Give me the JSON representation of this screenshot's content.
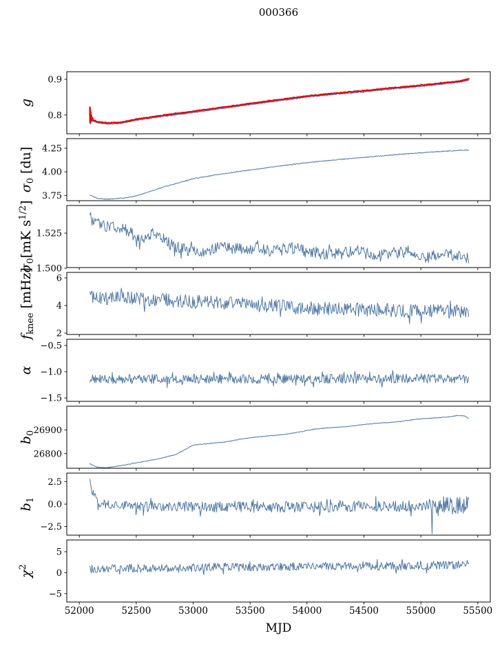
{
  "figure": {
    "background": "#ffffff",
    "axes_color": "#000000",
    "blue_line_color": "#4c78a8",
    "red_line_color": "#e8000b"
  },
  "chart_data": {
    "type": "line",
    "title": "000366",
    "xlabel": "MJD",
    "grid": false,
    "legend": "none",
    "xlim": [
      51890,
      55610
    ],
    "xticks": {
      "values": [
        52000,
        52500,
        53000,
        53500,
        54000,
        54500,
        55000,
        55500
      ],
      "labels": [
        "52000",
        "52500",
        "53000",
        "53500",
        "54000",
        "54500",
        "55000",
        "55500"
      ]
    },
    "panels": [
      {
        "name": "g",
        "ylabel_segments": [
          {
            "t": "g",
            "i": true
          }
        ],
        "ylim": [
          0.7472,
          0.9213
        ],
        "yticks": {
          "values": [
            0.8,
            0.9
          ],
          "labels": [
            "0.8",
            "0.9"
          ]
        },
        "series": [
          {
            "name": "g-blue",
            "color": "#4c78a8",
            "lw": 1.0,
            "n": 750,
            "seed": 11,
            "amp": 0.0013,
            "trend": [
              [
                52100,
                0.785
              ],
              [
                52160,
                0.778
              ],
              [
                52250,
                0.7745
              ],
              [
                52360,
                0.776
              ],
              [
                52500,
                0.785
              ],
              [
                52750,
                0.7965
              ],
              [
                53000,
                0.807
              ],
              [
                53250,
                0.818
              ],
              [
                53500,
                0.829
              ],
              [
                53750,
                0.8395
              ],
              [
                54000,
                0.85
              ],
              [
                54250,
                0.858
              ],
              [
                54500,
                0.865
              ],
              [
                54750,
                0.873
              ],
              [
                55000,
                0.88
              ],
              [
                55200,
                0.887
              ],
              [
                55350,
                0.8925
              ],
              [
                55420,
                0.898
              ]
            ]
          },
          {
            "name": "g-red",
            "color": "#e8000b",
            "lw": 2.2,
            "n": 750,
            "seed": 12,
            "amp": 0.0011,
            "pre": [
              [
                52093,
                0.797
              ],
              [
                52093.5,
                0.822
              ],
              [
                52094,
                0.78
              ],
              [
                52095,
                0.818
              ],
              [
                52096,
                0.777
              ],
              [
                52097,
                0.813
              ],
              [
                52098,
                0.779
              ],
              [
                52100,
                0.807
              ],
              [
                52102,
                0.783
              ],
              [
                52105,
                0.8
              ],
              [
                52109,
                0.787
              ],
              [
                52114,
                0.7925
              ],
              [
                52119,
                0.789
              ]
            ],
            "trend": [
              [
                52100,
                0.788
              ],
              [
                52160,
                0.781
              ],
              [
                52250,
                0.7775
              ],
              [
                52360,
                0.779
              ],
              [
                52500,
                0.788
              ],
              [
                52750,
                0.7995
              ],
              [
                53000,
                0.81
              ],
              [
                53250,
                0.821
              ],
              [
                53500,
                0.832
              ],
              [
                53750,
                0.8425
              ],
              [
                54000,
                0.853
              ],
              [
                54250,
                0.861
              ],
              [
                54500,
                0.868
              ],
              [
                54750,
                0.876
              ],
              [
                55000,
                0.883
              ],
              [
                55200,
                0.89
              ],
              [
                55350,
                0.8955
              ],
              [
                55420,
                0.901
              ]
            ]
          }
        ]
      },
      {
        "name": "sigma0-du",
        "ylabel_segments": [
          {
            "t": "σ",
            "i": true
          },
          {
            "t": "0",
            "pos": "sub"
          },
          {
            "t": " [du]"
          }
        ],
        "ylim": [
          3.694,
          4.352
        ],
        "yticks": {
          "values": [
            3.75,
            4.0,
            4.25
          ],
          "labels": [
            "3.75",
            "4.00",
            "4.25"
          ]
        },
        "series": [
          {
            "name": "sigma0-du-line",
            "color": "#4c78a8",
            "lw": 1.0,
            "n": 700,
            "seed": 21,
            "amp": 0.004,
            "trend": [
              [
                52093,
                3.755
              ],
              [
                52160,
                3.718
              ],
              [
                52260,
                3.711
              ],
              [
                52400,
                3.722
              ],
              [
                52500,
                3.744
              ],
              [
                52750,
                3.843
              ],
              [
                53000,
                3.927
              ],
              [
                53250,
                3.977
              ],
              [
                53500,
                4.019
              ],
              [
                53750,
                4.06
              ],
              [
                54000,
                4.097
              ],
              [
                54250,
                4.127
              ],
              [
                54500,
                4.153
              ],
              [
                54750,
                4.179
              ],
              [
                55000,
                4.202
              ],
              [
                55250,
                4.221
              ],
              [
                55420,
                4.232
              ]
            ]
          }
        ]
      },
      {
        "name": "sigma0-mK",
        "ylabel_segments": [
          {
            "t": "σ",
            "i": true
          },
          {
            "t": "0",
            "pos": "sub"
          },
          {
            "t": "[mK s"
          },
          {
            "t": "1/2",
            "pos": "sup"
          },
          {
            "t": "]"
          }
        ],
        "ylim": [
          1.5005,
          1.5446
        ],
        "yticks": {
          "values": [
            1.5,
            1.525
          ],
          "labels": [
            "1.500",
            "1.525"
          ]
        },
        "series": [
          {
            "name": "sigma0-mK-line",
            "color": "#4c78a8",
            "lw": 1.0,
            "n": 520,
            "seed": 31,
            "amp": 0.0042,
            "trend": [
              [
                52093,
                1.5365
              ],
              [
                52130,
                1.532
              ],
              [
                52250,
                1.53
              ],
              [
                52400,
                1.528
              ],
              [
                52550,
                1.52
              ],
              [
                52650,
                1.526
              ],
              [
                52800,
                1.517
              ],
              [
                52950,
                1.513
              ],
              [
                53100,
                1.5115
              ],
              [
                53250,
                1.516
              ],
              [
                53400,
                1.5135
              ],
              [
                53550,
                1.5145
              ],
              [
                53700,
                1.512
              ],
              [
                53850,
                1.5145
              ],
              [
                54000,
                1.5125
              ],
              [
                54150,
                1.51
              ],
              [
                54300,
                1.5105
              ],
              [
                54450,
                1.512
              ],
              [
                54600,
                1.5085
              ],
              [
                54750,
                1.5105
              ],
              [
                54900,
                1.512
              ],
              [
                55050,
                1.507
              ],
              [
                55200,
                1.5115
              ],
              [
                55300,
                1.509
              ],
              [
                55420,
                1.5065
              ]
            ]
          }
        ]
      },
      {
        "name": "f-knee",
        "ylabel_segments": [
          {
            "t": "f",
            "i": true
          },
          {
            "t": "knee",
            "pos": "sub"
          },
          {
            "t": " [mHz]"
          }
        ],
        "ylim": [
          1.9,
          6.4
        ],
        "yticks": {
          "values": [
            2,
            4,
            6
          ],
          "labels": [
            "2",
            "4",
            "6"
          ]
        },
        "series": [
          {
            "name": "f-knee-line",
            "color": "#4c78a8",
            "lw": 1.0,
            "n": 520,
            "seed": 41,
            "amp": 0.5,
            "trend": [
              [
                52093,
                4.65
              ],
              [
                52300,
                4.55
              ],
              [
                52600,
                4.45
              ],
              [
                53000,
                4.3
              ],
              [
                53400,
                4.1
              ],
              [
                53800,
                3.9
              ],
              [
                54200,
                3.75
              ],
              [
                54600,
                3.65
              ],
              [
                55000,
                3.6
              ],
              [
                55420,
                3.55
              ]
            ]
          }
        ]
      },
      {
        "name": "alpha",
        "ylabel_segments": [
          {
            "t": "α",
            "i": true
          }
        ],
        "ylim": [
          -1.565,
          -0.383
        ],
        "yticks": {
          "values": [
            -1.5,
            -1.0,
            -0.5
          ],
          "labels": [
            "−1.5",
            "−1.0",
            "−0.5"
          ]
        },
        "series": [
          {
            "name": "alpha-line",
            "color": "#4c78a8",
            "lw": 1.0,
            "n": 560,
            "seed": 51,
            "amp": 0.09,
            "trend": [
              [
                52093,
                -1.135
              ],
              [
                52500,
                -1.14
              ],
              [
                53000,
                -1.135
              ],
              [
                53500,
                -1.14
              ],
              [
                54000,
                -1.135
              ],
              [
                54500,
                -1.135
              ],
              [
                55000,
                -1.13
              ],
              [
                55420,
                -1.13
              ]
            ]
          }
        ]
      },
      {
        "name": "b0",
        "ylabel_segments": [
          {
            "t": "b",
            "i": true
          },
          {
            "t": "0",
            "pos": "sub"
          }
        ],
        "ylim": [
          26738,
          27000
        ],
        "yticks": {
          "values": [
            26800,
            26900
          ],
          "labels": [
            "26800",
            "26900"
          ]
        },
        "series": [
          {
            "name": "b0-line",
            "color": "#4c78a8",
            "lw": 1.0,
            "n": 650,
            "seed": 61,
            "amp": 1.3,
            "trend": [
              [
                52093,
                26757
              ],
              [
                52150,
                26743
              ],
              [
                52240,
                26740
              ],
              [
                52400,
                26752
              ],
              [
                52550,
                26765
              ],
              [
                52700,
                26778
              ],
              [
                52850,
                26796
              ],
              [
                53000,
                26836
              ],
              [
                53150,
                26843
              ],
              [
                53300,
                26850
              ],
              [
                53450,
                26864
              ],
              [
                53600,
                26872
              ],
              [
                53750,
                26878
              ],
              [
                53900,
                26888
              ],
              [
                54050,
                26902
              ],
              [
                54200,
                26909
              ],
              [
                54350,
                26914
              ],
              [
                54500,
                26923
              ],
              [
                54650,
                26929
              ],
              [
                54800,
                26934
              ],
              [
                54950,
                26944
              ],
              [
                55100,
                26950
              ],
              [
                55250,
                26955
              ],
              [
                55320,
                26961
              ],
              [
                55380,
                26959
              ],
              [
                55420,
                26949
              ]
            ]
          }
        ]
      },
      {
        "name": "b1",
        "ylabel_segments": [
          {
            "t": "b",
            "i": true
          },
          {
            "t": "1",
            "pos": "sub"
          }
        ],
        "ylim": [
          -3.45,
          3.45
        ],
        "yticks": {
          "values": [
            -2.5,
            0.0,
            2.5
          ],
          "labels": [
            "−2.5",
            "0.0",
            "2.5"
          ]
        },
        "series": [
          {
            "name": "b1-line",
            "color": "#4c78a8",
            "lw": 1.0,
            "n": 560,
            "seed": 71,
            "amp": 0.6,
            "trend": [
              [
                52093,
                2.45
              ],
              [
                52105,
                1.8
              ],
              [
                52125,
                0.9
              ],
              [
                52150,
                0.45
              ],
              [
                52200,
                0.1
              ],
              [
                52300,
                -0.15
              ],
              [
                52500,
                -0.25
              ],
              [
                53000,
                -0.3
              ],
              [
                53500,
                -0.3
              ],
              [
                54000,
                -0.3
              ],
              [
                54500,
                -0.25
              ],
              [
                55000,
                -0.2
              ],
              [
                55420,
                -0.1
              ]
            ],
            "spikes": [
              [
                55097,
                -3.3
              ]
            ],
            "amp_regions": [
              [
                55130,
                55420,
                1.15
              ]
            ]
          }
        ]
      },
      {
        "name": "chi2",
        "ylabel_segments": [
          {
            "t": "χ",
            "i": true
          },
          {
            "t": "2",
            "pos": "sup"
          }
        ],
        "ylim": [
          -7.0,
          7.8
        ],
        "yticks": {
          "values": [
            -5,
            0,
            5
          ],
          "labels": [
            "−5",
            "0",
            "5"
          ]
        },
        "series": [
          {
            "name": "chi2-line",
            "color": "#4c78a8",
            "lw": 1.0,
            "n": 560,
            "seed": 81,
            "amp": 1.0,
            "trend": [
              [
                52093,
                0.9
              ],
              [
                52400,
                1.1
              ],
              [
                52800,
                0.95
              ],
              [
                53200,
                1.4
              ],
              [
                53600,
                1.2
              ],
              [
                54000,
                1.55
              ],
              [
                54400,
                1.7
              ],
              [
                54700,
                1.5
              ],
              [
                55000,
                1.6
              ],
              [
                55250,
                1.8
              ],
              [
                55420,
                2.1
              ]
            ]
          }
        ]
      }
    ]
  }
}
